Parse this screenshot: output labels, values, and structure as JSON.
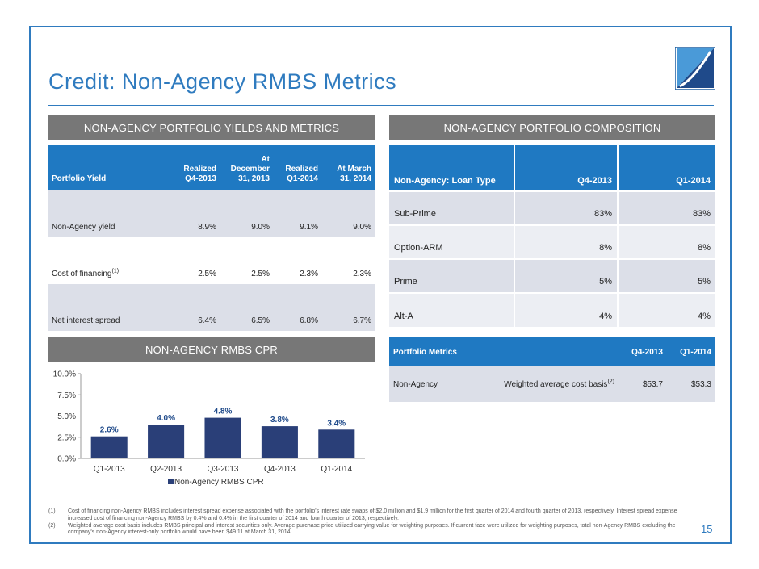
{
  "title": "Credit: Non-Agency RMBS Metrics",
  "page_number": "15",
  "colors": {
    "accent": "#2f7bbf",
    "table_header": "#1f79c2",
    "section_bar": "#777777",
    "bar_fill": "#2a3f78",
    "row_shade": "#dcdfe8"
  },
  "sections": {
    "yields": "NON-AGENCY PORTFOLIO YIELDS AND METRICS",
    "composition": "NON-AGENCY PORTFOLIO COMPOSITION",
    "cpr": "NON-AGENCY RMBS CPR"
  },
  "yields_table": {
    "headers": [
      "Portfolio Yield",
      "Realized\nQ4-2013",
      "At December\n31, 2013",
      "Realized\nQ1-2014",
      "At March\n31, 2014"
    ],
    "rows": [
      {
        "label": "Non-Agency yield",
        "sup": "",
        "values": [
          "8.9%",
          "9.0%",
          "9.1%",
          "9.0%"
        ]
      },
      {
        "label": "Cost of financing",
        "sup": "(1)",
        "values": [
          "2.5%",
          "2.5%",
          "2.3%",
          "2.3%"
        ]
      },
      {
        "label": "Net interest spread",
        "sup": "",
        "values": [
          "6.4%",
          "6.5%",
          "6.8%",
          "6.7%"
        ]
      }
    ]
  },
  "composition_table": {
    "headers": [
      "Non-Agency: Loan Type",
      "Q4-2013",
      "Q1-2014"
    ],
    "rows": [
      {
        "label": "Sub-Prime",
        "values": [
          "83%",
          "83%"
        ]
      },
      {
        "label": "Option-ARM",
        "values": [
          "8%",
          "8%"
        ]
      },
      {
        "label": "Prime",
        "values": [
          "5%",
          "5%"
        ]
      },
      {
        "label": "Alt-A",
        "values": [
          "4%",
          "4%"
        ]
      }
    ]
  },
  "metrics_table": {
    "headers": [
      "Portfolio Metrics",
      "Q4-2013",
      "Q1-2014"
    ],
    "row": {
      "label": "Non-Agency",
      "desc": "Weighted average cost basis",
      "sup": "(2)",
      "values": [
        "$53.7",
        "$53.3"
      ]
    }
  },
  "chart_data": {
    "type": "bar",
    "title": "",
    "categories": [
      "Q1-2013",
      "Q2-2013",
      "Q3-2013",
      "Q4-2013",
      "Q1-2014"
    ],
    "series": [
      {
        "name": "Non-Agency RMBS CPR",
        "values": [
          2.6,
          4.0,
          4.8,
          3.8,
          3.4
        ]
      }
    ],
    "data_labels": [
      "2.6%",
      "4.0%",
      "4.8%",
      "3.8%",
      "3.4%"
    ],
    "yticks": [
      0,
      2.5,
      5.0,
      7.5,
      10.0
    ],
    "ytick_labels": [
      "0.0%",
      "2.5%",
      "5.0%",
      "7.5%",
      "10.0%"
    ],
    "ylim": [
      0,
      10
    ],
    "xlabel": "",
    "ylabel": "",
    "legend": "bottom",
    "grid": false
  },
  "footnotes": [
    {
      "num": "(1)",
      "text": "Cost of financing non-Agency RMBS includes interest spread expense associated with the portfolio's interest rate swaps of $2.0 million and $1.9 million for the first quarter of 2014 and fourth quarter of 2013, respectively. Interest spread expense increased cost of financing non-Agency RMBS by 0.4% and 0.4% in the first quarter of 2014 and fourth quarter of 2013, respectively."
    },
    {
      "num": "(2)",
      "text": "Weighted average cost basis includes RMBS principal and interest securities only. Average purchase price utilized carrying value for weighting purposes. If current face were utilized for weighting purposes, total non-Agency RMBS excluding the company's non-Agency interest-only portfolio would have been $49.11 at March 31, 2014."
    }
  ]
}
